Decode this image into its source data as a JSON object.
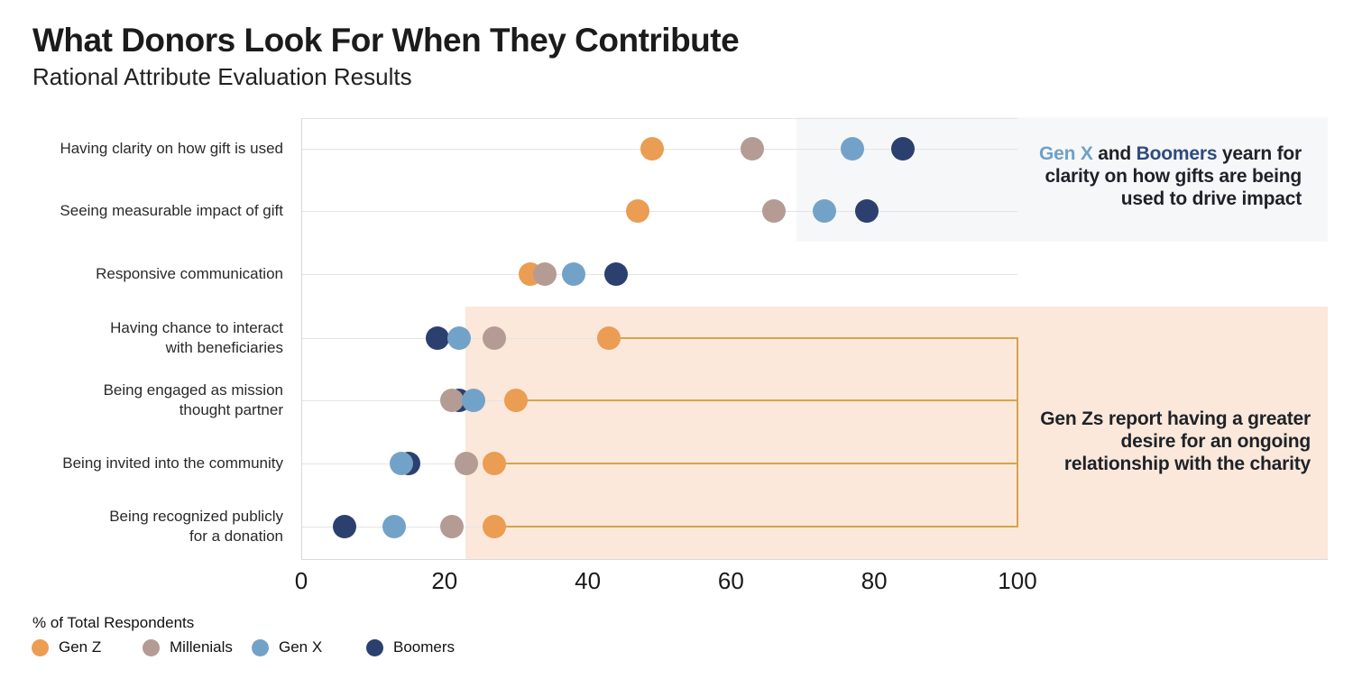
{
  "header": {
    "title": "What Donors Look For When They Contribute",
    "subtitle": "Rational Attribute Evaluation Results"
  },
  "style": {
    "orange_band": "#FBE8DA",
    "gray_box": "#F6F7F8",
    "bracket_gold": "#D8A349",
    "gridline": "#E4E4E4",
    "axis_line": "#D8D8D8",
    "genx_text": "#6FA0C8",
    "boomers_text": "#2E4B7E"
  },
  "chart_data": {
    "type": "scatter",
    "title": "What Donors Look For When They Contribute",
    "subtitle": "Rational Attribute Evaluation Results",
    "xlabel": "% of Total Respondents",
    "x_axis": {
      "range": [
        0,
        100
      ],
      "ticks": [
        0,
        20,
        40,
        60,
        80,
        100
      ],
      "grid": true
    },
    "categories": [
      "Having clarity on how gift is used",
      "Seeing measurable impact of gift",
      "Responsive communication",
      "Having chance to interact\nwith beneficiaries",
      "Being engaged as mission\nthought partner",
      "Being invited into the community",
      "Being recognized publicly\nfor a donation"
    ],
    "series": [
      {
        "name": "Gen Z",
        "color": "#EA9D53",
        "values": [
          49,
          47,
          32,
          43,
          30,
          27,
          27
        ]
      },
      {
        "name": "Millenials",
        "color": "#B49C94",
        "values": [
          63,
          66,
          34,
          27,
          21,
          23,
          21
        ]
      },
      {
        "name": "Gen X",
        "color": "#73A2C9",
        "values": [
          77,
          73,
          38,
          22,
          24,
          14,
          13
        ]
      },
      {
        "name": "Boomers",
        "color": "#2B406E",
        "values": [
          84,
          79,
          44,
          19,
          22,
          15,
          6
        ]
      }
    ],
    "bracket": {
      "series": "Gen Z",
      "rows": [
        3,
        4,
        5,
        6
      ],
      "extends_to": 100
    },
    "highlighted_rows_gray_box": [
      0,
      1
    ],
    "highlighted_rows_orange_band": [
      3,
      4,
      5,
      6
    ],
    "legend_position": "bottom-left"
  },
  "annotations": {
    "top": {
      "genx": "Gen X",
      "and_word": " and ",
      "boomers": "Boomers",
      "line1_rest": " yearn for",
      "line2": "clarity on how gifts are being",
      "line3": "used to drive impact"
    },
    "genz": {
      "line1": "Gen Zs report having a greater",
      "line2": "desire for an ongoing",
      "line3": "relationship with the charity"
    }
  },
  "legend": {
    "title": "% of Total Respondents",
    "items": [
      {
        "label": "Gen Z",
        "color": "#EA9D53"
      },
      {
        "label": "Millenials",
        "color": "#B49C94"
      },
      {
        "label": "Gen X",
        "color": "#73A2C9"
      },
      {
        "label": "Boomers",
        "color": "#2B406E"
      }
    ]
  }
}
